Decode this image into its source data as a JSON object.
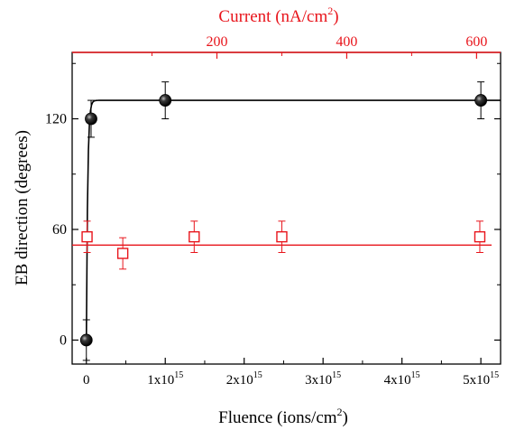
{
  "chart_data": {
    "type": "scatter",
    "xlabel": "Fluence (ions/cm",
    "xlabel_sup": "2",
    "xlabel_end": ")",
    "ylabel": "EB direction (degrees)",
    "top_label": "Current (nA/cm",
    "top_label_sup": "2",
    "top_label_end": ")",
    "xlim": [
      -180000000000000.0,
      5250000000000000.0
    ],
    "ylim": [
      -13,
      156
    ],
    "top_xlim": [
      -23,
      637
    ],
    "x_ticks": [
      {
        "value": 0,
        "mant": "0",
        "sup": ""
      },
      {
        "value": 1000000000000000.0,
        "mant": "1x10",
        "sup": "15"
      },
      {
        "value": 2000000000000000.0,
        "mant": "2x10",
        "sup": "15"
      },
      {
        "value": 3000000000000000.0,
        "mant": "3x10",
        "sup": "15"
      },
      {
        "value": 4000000000000000.0,
        "mant": "4x10",
        "sup": "15"
      },
      {
        "value": 5000000000000000.0,
        "mant": "5x10",
        "sup": "15"
      }
    ],
    "y_ticks": [
      0,
      60,
      120
    ],
    "top_ticks": [
      200,
      400,
      600
    ],
    "colors": {
      "black_series": "#000000",
      "red_series": "#e8141b",
      "top_axis": "#e8141b",
      "axes": "#000000"
    },
    "series": [
      {
        "axis": "bottom",
        "marker": "filled-sphere",
        "color": "#000000",
        "points": [
          {
            "x": 0,
            "y": 0,
            "err": 11
          },
          {
            "x": 60000000000000.0,
            "y": 120,
            "err": 10
          },
          {
            "x": 1000000000000000.0,
            "y": 130,
            "err": 10
          },
          {
            "x": 5000000000000000.0,
            "y": 130,
            "err": 10
          }
        ],
        "fit": {
          "type": "saturating-exponential",
          "plateau": 130,
          "rate_per_fluence": 6e-14
        }
      },
      {
        "axis": "top",
        "marker": "open-square",
        "color": "#e8141b",
        "points": [
          {
            "x": 0,
            "y": 56,
            "err": 8.5
          },
          {
            "x": 55,
            "y": 47,
            "err": 8.5
          },
          {
            "x": 165,
            "y": 56,
            "err": 8.5
          },
          {
            "x": 300,
            "y": 56,
            "err": 8.5
          },
          {
            "x": 605,
            "y": 56,
            "err": 8.5
          }
        ],
        "fit": {
          "type": "constant",
          "value": 51.5
        }
      }
    ],
    "grid": false,
    "legend": "none"
  }
}
